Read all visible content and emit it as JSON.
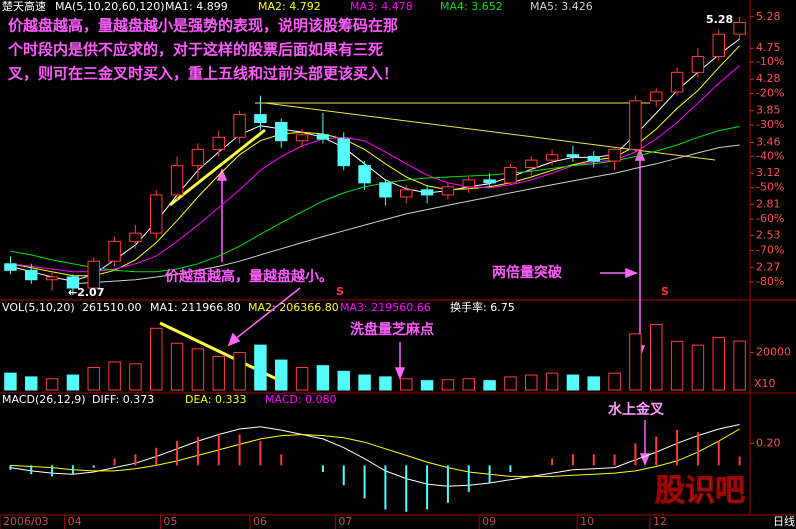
{
  "chart_data": [
    {
      "type": "candlestick",
      "title": "楚天高速",
      "subtitle": "MA(5,10,20,60,120)",
      "categories": [
        null,
        null,
        null,
        null,
        null,
        null,
        null,
        null,
        null,
        null,
        null,
        null,
        null,
        null,
        null,
        null,
        null,
        null,
        null,
        null,
        null,
        null,
        null,
        null,
        null,
        null,
        null,
        null,
        null,
        null,
        null,
        null,
        null,
        null,
        null,
        null
      ],
      "open": [
        2.3,
        2.25,
        2.18,
        2.2,
        2.12,
        2.32,
        2.48,
        2.55,
        2.9,
        3.2,
        3.38,
        3.52,
        3.8,
        3.7,
        3.48,
        3.55,
        3.5,
        3.2,
        3.02,
        2.88,
        2.95,
        2.9,
        2.98,
        3.05,
        3.02,
        3.18,
        3.26,
        3.32,
        3.3,
        3.25,
        3.38,
        3.98,
        4.1,
        4.38,
        4.62,
        4.98
      ],
      "high": [
        2.36,
        2.3,
        2.24,
        2.22,
        2.35,
        2.52,
        2.62,
        2.95,
        3.3,
        3.45,
        3.6,
        3.85,
        4.05,
        3.75,
        3.62,
        3.82,
        3.58,
        3.25,
        3.05,
        3.0,
        3.0,
        3.02,
        3.08,
        3.12,
        3.22,
        3.3,
        3.38,
        3.42,
        3.36,
        3.4,
        4.05,
        4.15,
        4.45,
        4.75,
        5.05,
        5.28
      ],
      "low": [
        2.22,
        2.15,
        2.1,
        2.07,
        2.1,
        2.28,
        2.42,
        2.5,
        2.85,
        3.05,
        3.3,
        3.45,
        3.6,
        3.4,
        3.4,
        3.45,
        3.15,
        2.95,
        2.8,
        2.82,
        2.82,
        2.86,
        2.92,
        2.98,
        3.0,
        3.1,
        3.2,
        3.24,
        3.18,
        3.15,
        3.35,
        3.9,
        4.05,
        4.3,
        4.55,
        4.9
      ],
      "close": [
        2.25,
        2.18,
        2.2,
        2.12,
        2.32,
        2.48,
        2.55,
        2.9,
        3.2,
        3.38,
        3.52,
        3.8,
        3.7,
        3.48,
        3.55,
        3.5,
        3.2,
        3.02,
        2.88,
        2.95,
        2.9,
        2.98,
        3.05,
        3.02,
        3.18,
        3.26,
        3.32,
        3.3,
        3.25,
        3.38,
        3.98,
        4.1,
        4.38,
        4.62,
        4.98,
        5.18
      ],
      "up_color": "#ff3c3c",
      "down_color": "#54fcfc",
      "series": [
        {
          "name": "MA1: 4.899",
          "color": "#ffffff",
          "values": [
            2.28,
            2.24,
            2.2,
            2.17,
            2.22,
            2.33,
            2.45,
            2.65,
            2.9,
            3.15,
            3.35,
            3.55,
            3.66,
            3.62,
            3.58,
            3.52,
            3.4,
            3.22,
            3.05,
            2.96,
            2.92,
            2.94,
            2.98,
            3.01,
            3.08,
            3.16,
            3.24,
            3.29,
            3.29,
            3.32,
            3.55,
            3.82,
            4.12,
            4.38,
            4.65,
            4.9
          ]
        },
        {
          "name": "MA2: 4.792",
          "color": "#ffff00",
          "values": [
            2.3,
            2.27,
            2.24,
            2.21,
            2.21,
            2.25,
            2.33,
            2.47,
            2.66,
            2.88,
            3.1,
            3.32,
            3.48,
            3.56,
            3.58,
            3.56,
            3.5,
            3.38,
            3.22,
            3.08,
            2.99,
            2.95,
            2.96,
            2.98,
            3.02,
            3.08,
            3.15,
            3.21,
            3.26,
            3.29,
            3.42,
            3.62,
            3.88,
            4.12,
            4.45,
            4.79
          ]
        },
        {
          "name": "MA3: 4.478",
          "color": "#ff00ff",
          "values": [
            2.3,
            2.28,
            2.26,
            2.24,
            2.24,
            2.26,
            2.3,
            2.36,
            2.48,
            2.62,
            2.78,
            2.95,
            3.15,
            3.3,
            3.42,
            3.5,
            3.52,
            3.48,
            3.35,
            3.22,
            3.1,
            3.02,
            2.98,
            2.97,
            3.0,
            3.05,
            3.12,
            3.2,
            3.24,
            3.26,
            3.35,
            3.5,
            3.7,
            3.95,
            4.22,
            4.48
          ]
        },
        {
          "name": "MA4: 3.652",
          "color": "#00e000",
          "values": [
            2.4,
            2.37,
            2.33,
            2.3,
            2.27,
            2.25,
            2.24,
            2.24,
            2.26,
            2.3,
            2.36,
            2.44,
            2.54,
            2.64,
            2.74,
            2.84,
            2.92,
            2.98,
            3.02,
            3.05,
            3.07,
            3.08,
            3.09,
            3.1,
            3.12,
            3.14,
            3.17,
            3.2,
            3.22,
            3.25,
            3.3,
            3.36,
            3.43,
            3.52,
            3.6,
            3.65
          ]
        },
        {
          "name": "MA5: 3.426",
          "color": "#d0d0d0",
          "values": [
            null,
            null,
            null,
            2.15,
            2.16,
            2.17,
            2.18,
            2.2,
            2.22,
            2.25,
            2.28,
            2.32,
            2.37,
            2.42,
            2.47,
            2.52,
            2.57,
            2.62,
            2.67,
            2.72,
            2.76,
            2.8,
            2.84,
            2.88,
            2.92,
            2.96,
            3.0,
            3.04,
            3.08,
            3.12,
            3.17,
            3.22,
            3.28,
            3.34,
            3.4,
            3.43
          ]
        }
      ],
      "ylim": [
        2.05,
        5.33
      ],
      "log": true,
      "yticks": [
        5.28,
        4.75,
        4.28,
        3.85,
        3.46,
        3.12,
        2.81,
        2.53,
        2.27
      ],
      "y2lim": [
        -85.1,
        5.3
      ],
      "y2ticks": [
        {
          "value": -10,
          "label": "-10%"
        },
        {
          "value": -20,
          "label": "-20%"
        },
        {
          "value": -30,
          "label": "-30%"
        },
        {
          "value": -40,
          "label": "-40%"
        },
        {
          "value": -50,
          "label": "-50%"
        },
        {
          "value": -60,
          "label": "-60%"
        },
        {
          "value": -70,
          "label": "-70%"
        },
        {
          "value": -80,
          "label": "-80%"
        }
      ],
      "annotations": [
        "价越盘越高，量越盘越小是强势的表现，说明该股筹码在那",
        "个时段内是供不应求的，对于这样的股票后面如果有三死",
        "叉，则可在三金叉时买入，重上五线和过前头部更该买入！",
        "价越盘越高，量越盘越小。",
        "两倍量突破",
        "←2.07",
        "5.28"
      ],
      "markers": [
        "S",
        "S"
      ]
    },
    {
      "type": "volume",
      "title": "VOL(5,10,20)",
      "legend": [
        {
          "label": "261510.00",
          "color": "#ffffff"
        },
        {
          "label": "MA1: 211966.80",
          "color": "#ffffff"
        },
        {
          "label": "MA2: 206366.80",
          "color": "#ffff00"
        },
        {
          "label": "MA3: 219560.66",
          "color": "#ff00ff"
        },
        {
          "label": "换手率: 6.75",
          "color": "#ffffff"
        }
      ],
      "values": [
        9000,
        7000,
        6000,
        8000,
        12000,
        15000,
        14000,
        33000,
        25000,
        22000,
        18000,
        20000,
        24000,
        16000,
        12000,
        13000,
        10000,
        8000,
        7000,
        6000,
        5000,
        5500,
        6000,
        5000,
        7000,
        8000,
        9000,
        8000,
        7000,
        9000,
        30000,
        35000,
        26000,
        24000,
        28000,
        26151
      ],
      "ylim": [
        0,
        38500
      ],
      "yticks": [
        20000
      ],
      "unit": "X10",
      "annotations": [
        "洗盘量芝麻点"
      ]
    },
    {
      "type": "macd",
      "title": "MACD(26,12,9)",
      "series": [
        {
          "name": "DIFF: 0.373",
          "color": "#ffffff",
          "values": [
            -0.02,
            -0.05,
            -0.07,
            -0.08,
            -0.06,
            -0.02,
            0.02,
            0.08,
            0.15,
            0.22,
            0.28,
            0.33,
            0.35,
            0.32,
            0.28,
            0.24,
            0.16,
            0.06,
            -0.05,
            -0.12,
            -0.17,
            -0.19,
            -0.18,
            -0.16,
            -0.13,
            -0.1,
            -0.07,
            -0.04,
            -0.03,
            -0.02,
            0.05,
            0.12,
            0.2,
            0.27,
            0.33,
            0.37
          ]
        },
        {
          "name": "DEA: 0.333",
          "color": "#ffff00",
          "values": [
            0.0,
            -0.01,
            -0.02,
            -0.04,
            -0.05,
            -0.05,
            -0.03,
            0.0,
            0.04,
            0.09,
            0.14,
            0.19,
            0.24,
            0.27,
            0.28,
            0.27,
            0.25,
            0.21,
            0.15,
            0.09,
            0.03,
            -0.02,
            -0.06,
            -0.08,
            -0.1,
            -0.1,
            -0.1,
            -0.09,
            -0.08,
            -0.07,
            -0.05,
            -0.01,
            0.04,
            0.12,
            0.22,
            0.33
          ]
        },
        {
          "name": "MACD: 0.080",
          "color": "#ff00ff",
          "style": "histogram",
          "values": [
            -0.04,
            -0.08,
            -0.1,
            -0.08,
            -0.02,
            0.06,
            0.1,
            0.16,
            0.22,
            0.26,
            0.28,
            0.28,
            0.22,
            0.1,
            0.0,
            -0.06,
            -0.18,
            -0.3,
            -0.4,
            -0.42,
            -0.4,
            -0.34,
            -0.24,
            -0.16,
            -0.06,
            0.0,
            0.06,
            0.1,
            0.1,
            0.1,
            0.2,
            0.26,
            0.32,
            0.3,
            0.22,
            0.08
          ]
        }
      ],
      "ylim": [
        -0.45,
        0.52
      ],
      "yticks": [
        {
          "value": 0.2,
          "label": "0.20"
        }
      ],
      "xticks": [
        {
          "value": -0.5,
          "label": "2006/03"
        },
        {
          "value": 2.6,
          "label": "04"
        },
        {
          "value": 7.2,
          "label": "05"
        },
        {
          "value": 11.5,
          "label": "06"
        },
        {
          "value": 15.6,
          "label": "07"
        },
        {
          "value": 22.5,
          "label": "09"
        },
        {
          "value": 27.2,
          "label": "10"
        },
        {
          "value": 30.7,
          "label": "12"
        }
      ],
      "period": "日线",
      "annotations": [
        "水上金叉"
      ]
    }
  ],
  "watermark": "股识吧"
}
